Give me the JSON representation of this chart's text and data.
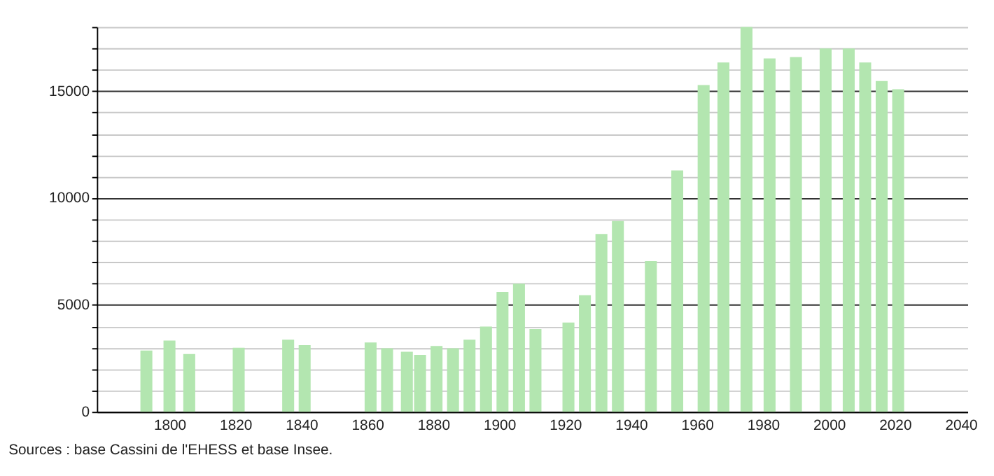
{
  "chart_data": {
    "type": "bar",
    "x": [
      1793,
      1800,
      1806,
      1821,
      1836,
      1841,
      1861,
      1866,
      1872,
      1876,
      1881,
      1886,
      1891,
      1896,
      1901,
      1906,
      1911,
      1921,
      1926,
      1931,
      1936,
      1946,
      1954,
      1962,
      1968,
      1975,
      1982,
      1990,
      1999,
      2006,
      2011,
      2016,
      2021
    ],
    "values": [
      2870,
      3330,
      2700,
      3000,
      3370,
      3120,
      3240,
      2970,
      2810,
      2660,
      3080,
      2970,
      3370,
      3990,
      5610,
      5990,
      3870,
      4180,
      5450,
      8320,
      8920,
      7050,
      11290,
      15280,
      16340,
      18000,
      16530,
      16590,
      16990,
      16990,
      16340,
      15470,
      15090
    ],
    "color": "#b3e6b0",
    "xlim": [
      1780,
      2040
    ],
    "xticks": [
      1800,
      1820,
      1840,
      1860,
      1880,
      1900,
      1920,
      1940,
      1960,
      1980,
      2000,
      2020,
      2040
    ],
    "ylim": [
      0,
      18000
    ],
    "yticks": [
      0,
      {
        "value": 1000,
        "label": null
      },
      {
        "value": 2000,
        "label": null
      },
      {
        "value": 3000,
        "label": null
      },
      {
        "value": 4000,
        "label": null
      },
      5000,
      {
        "value": 6000,
        "label": null
      },
      {
        "value": 7000,
        "label": null
      },
      {
        "value": 8000,
        "label": null
      },
      {
        "value": 9000,
        "label": null
      },
      10000,
      {
        "value": 11000,
        "label": null
      },
      {
        "value": 12000,
        "label": null
      },
      {
        "value": 13000,
        "label": null
      },
      {
        "value": 14000,
        "label": null
      },
      15000,
      {
        "value": 16000,
        "label": null
      },
      {
        "value": 17000,
        "label": null
      },
      {
        "value": 18000,
        "label": null
      }
    ],
    "grid": "y",
    "annotations": [
      "Sources : base Cassini de l'EHESS et base Insee."
    ]
  }
}
